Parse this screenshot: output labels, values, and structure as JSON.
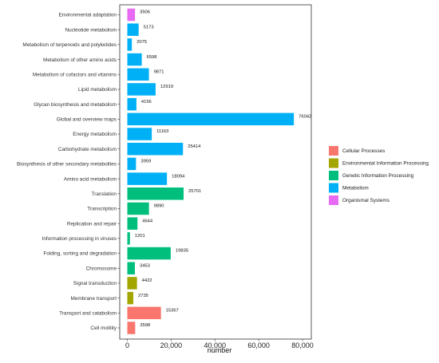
{
  "chart_data": {
    "type": "bar",
    "orientation": "horizontal",
    "xlabel": "number",
    "ylabel": "",
    "xlim": [
      0,
      80000
    ],
    "x_ticks": [
      0,
      20000,
      40000,
      60000,
      80000
    ],
    "x_tick_labels": [
      "0",
      "20,000",
      "40,000",
      "60,000",
      "80,000"
    ],
    "grid": false,
    "legend_position": "right",
    "groups": [
      {
        "name": "Cellular Processes",
        "color": "#F8766D"
      },
      {
        "name": "Environmental Information Processing",
        "color": "#A3A500"
      },
      {
        "name": "Genetic Information Processing",
        "color": "#00BF7D"
      },
      {
        "name": "Metabolism",
        "color": "#00B0F6"
      },
      {
        "name": "Organismal Systems",
        "color": "#E76BF3"
      }
    ],
    "bars": [
      {
        "category": "Environmental adaptation",
        "value": 3506,
        "group": "Organismal Systems"
      },
      {
        "category": "Nucleotide metabolism",
        "value": 5173,
        "group": "Metabolism"
      },
      {
        "category": "Metabolism of terpenoids and polyketides",
        "value": 2075,
        "group": "Metabolism"
      },
      {
        "category": "Metabolism of other amino acids",
        "value": 6598,
        "group": "Metabolism"
      },
      {
        "category": "Metabolism of cofactors and vitamins",
        "value": 9871,
        "group": "Metabolism"
      },
      {
        "category": "Lipid metabolism",
        "value": 12919,
        "group": "Metabolism"
      },
      {
        "category": "Glycan biosynthesis and metabolism",
        "value": 4156,
        "group": "Metabolism"
      },
      {
        "category": "Global and overview maps",
        "value": 76042,
        "group": "Metabolism"
      },
      {
        "category": "Energy metabolism",
        "value": 11163,
        "group": "Metabolism"
      },
      {
        "category": "Carbohydrate metabolism",
        "value": 25414,
        "group": "Metabolism"
      },
      {
        "category": "Biosynthesis of other secondary metabolites",
        "value": 3959,
        "group": "Metabolism"
      },
      {
        "category": "Amino acid metabolism",
        "value": 18094,
        "group": "Metabolism"
      },
      {
        "category": "Translation",
        "value": 25701,
        "group": "Genetic Information Processing"
      },
      {
        "category": "Transcription",
        "value": 9890,
        "group": "Genetic Information Processing"
      },
      {
        "category": "Replication and repair",
        "value": 4644,
        "group": "Genetic Information Processing"
      },
      {
        "category": "Information processing in viruses",
        "value": 1201,
        "group": "Genetic Information Processing"
      },
      {
        "category": "Folding, sorting and degradation",
        "value": 19835,
        "group": "Genetic Information Processing"
      },
      {
        "category": "Chromosome",
        "value": 3453,
        "group": "Genetic Information Processing"
      },
      {
        "category": "Signal transduction",
        "value": 4422,
        "group": "Environmental Information Processing"
      },
      {
        "category": "Membrane transport",
        "value": 2735,
        "group": "Environmental Information Processing"
      },
      {
        "category": "Transport and catabolism",
        "value": 15367,
        "group": "Cellular Processes"
      },
      {
        "category": "Cell motility",
        "value": 3598,
        "group": "Cellular Processes"
      }
    ]
  }
}
